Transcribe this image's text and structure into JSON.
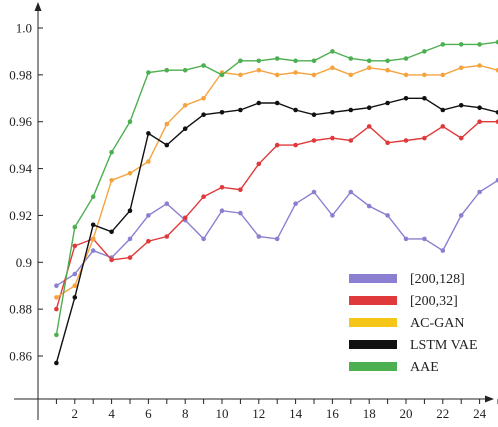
{
  "chart_data": {
    "type": "line",
    "title": "",
    "xlabel": "",
    "ylabel": "",
    "xlim": [
      0,
      26
    ],
    "ylim": [
      0.845,
      1.0
    ],
    "x_ticks": [
      2,
      4,
      6,
      8,
      10,
      12,
      14,
      16,
      18,
      20,
      22,
      24
    ],
    "y_ticks": [
      0.86,
      0.88,
      0.9,
      0.92,
      0.94,
      0.96,
      0.98,
      1.0
    ],
    "y_tick_labels": [
      "0.86",
      "0.88",
      "0.9",
      "0.92",
      "0.94",
      "0.96",
      "0.98",
      "1.0"
    ],
    "x": [
      1,
      2,
      3,
      4,
      5,
      6,
      7,
      8,
      9,
      10,
      11,
      12,
      13,
      14,
      15,
      16,
      17,
      18,
      19,
      20,
      21,
      22,
      23,
      24,
      25
    ],
    "grid": false,
    "legend_position": "bottom-right",
    "series": [
      {
        "name": "[200,128]",
        "color": "#8a7fd0",
        "values": [
          0.89,
          0.895,
          0.905,
          0.902,
          0.91,
          0.92,
          0.925,
          0.918,
          0.91,
          0.922,
          0.921,
          0.911,
          0.91,
          0.925,
          0.93,
          0.92,
          0.93,
          0.924,
          0.92,
          0.91,
          0.91,
          0.905,
          0.92,
          0.93,
          0.935
        ]
      },
      {
        "name": "[200,32]",
        "color": "#e0393b",
        "values": [
          0.88,
          0.907,
          0.91,
          0.901,
          0.902,
          0.909,
          0.911,
          0.919,
          0.928,
          0.932,
          0.931,
          0.942,
          0.95,
          0.95,
          0.952,
          0.953,
          0.952,
          0.958,
          0.951,
          0.952,
          0.953,
          0.958,
          0.953,
          0.96,
          0.96
        ]
      },
      {
        "name": "AC-GAN",
        "color": "#f5a33f",
        "values": [
          0.885,
          0.89,
          0.91,
          0.935,
          0.938,
          0.943,
          0.959,
          0.967,
          0.97,
          0.981,
          0.98,
          0.982,
          0.98,
          0.981,
          0.98,
          0.983,
          0.98,
          0.983,
          0.982,
          0.98,
          0.98,
          0.98,
          0.983,
          0.984,
          0.982
        ]
      },
      {
        "name": "LSTM VAE",
        "color": "#111111",
        "values": [
          0.857,
          0.885,
          0.916,
          0.913,
          0.922,
          0.955,
          0.95,
          0.957,
          0.963,
          0.964,
          0.965,
          0.968,
          0.968,
          0.965,
          0.963,
          0.964,
          0.965,
          0.966,
          0.968,
          0.97,
          0.97,
          0.965,
          0.967,
          0.966,
          0.964
        ]
      },
      {
        "name": "AAE",
        "color": "#4caf50",
        "values": [
          0.869,
          0.915,
          0.928,
          0.947,
          0.96,
          0.981,
          0.982,
          0.982,
          0.984,
          0.98,
          0.986,
          0.986,
          0.987,
          0.986,
          0.986,
          0.99,
          0.987,
          0.986,
          0.986,
          0.987,
          0.99,
          0.993,
          0.993,
          0.993,
          0.994
        ]
      }
    ],
    "legend_colors": [
      "#8a7fd0",
      "#e0393b",
      "#f5c518",
      "#111111",
      "#4caf50"
    ]
  }
}
